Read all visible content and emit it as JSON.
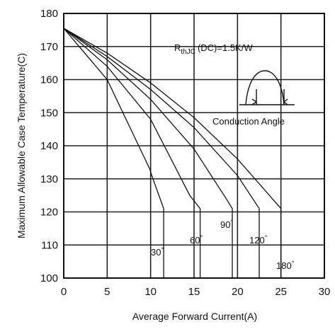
{
  "chart_data": {
    "type": "line",
    "xlabel": "Average Forward Current(A)",
    "ylabel": "Maximum Allowable Case Temperature(C)",
    "xlim": [
      0,
      30
    ],
    "ylim": [
      100,
      180
    ],
    "x_ticks": [
      "0",
      "5",
      "10",
      "15",
      "20",
      "25",
      "30"
    ],
    "y_ticks": [
      "100",
      "110",
      "120",
      "130",
      "140",
      "150",
      "160",
      "170",
      "180"
    ],
    "grid": true,
    "annotation_rth": "R",
    "annotation_rth_sub": "thJC",
    "annotation_rth_value": "(DC)=1.5K/W",
    "annotation_conduction": "Conduction Angle",
    "series": [
      {
        "name": "30°",
        "label_text": "30",
        "points": [
          [
            0,
            175.5
          ],
          [
            5,
            160
          ],
          [
            9.9,
            133
          ],
          [
            10.2,
            130.5
          ],
          [
            11.5,
            121
          ],
          [
            11.5,
            100
          ]
        ]
      },
      {
        "name": "60°",
        "label_text": "60",
        "points": [
          [
            0,
            175.5
          ],
          [
            5,
            164
          ],
          [
            10,
            148
          ],
          [
            14.5,
            125
          ],
          [
            15.7,
            121
          ],
          [
            15.7,
            100
          ]
        ]
      },
      {
        "name": "90°",
        "label_text": "90",
        "points": [
          [
            0,
            175.5
          ],
          [
            5,
            166
          ],
          [
            10,
            154
          ],
          [
            15,
            139
          ],
          [
            18.7,
            124
          ],
          [
            19.4,
            121
          ],
          [
            19.4,
            100
          ]
        ]
      },
      {
        "name": "120°",
        "label_text": "120",
        "points": [
          [
            0,
            175.5
          ],
          [
            5,
            167
          ],
          [
            10,
            157
          ],
          [
            15,
            145.5
          ],
          [
            20,
            131
          ],
          [
            22.5,
            121
          ],
          [
            22.5,
            100
          ]
        ]
      },
      {
        "name": "180°",
        "label_text": "180",
        "points": [
          [
            0,
            175.5
          ],
          [
            5,
            168
          ],
          [
            10,
            159
          ],
          [
            15,
            148.5
          ],
          [
            20,
            136
          ],
          [
            25,
            121
          ],
          [
            25,
            100
          ]
        ]
      }
    ]
  }
}
